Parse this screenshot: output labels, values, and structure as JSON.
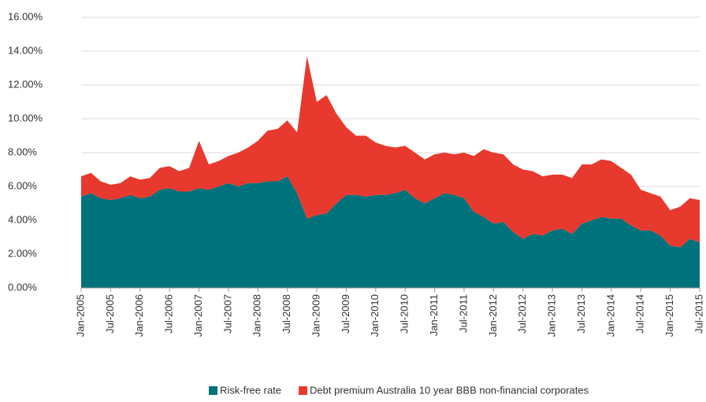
{
  "chart_data": {
    "type": "stacked_area",
    "categories": [
      "Jan-2005",
      null,
      null,
      "Jul-2005",
      null,
      null,
      "Jan-2006",
      null,
      null,
      "Jul-2006",
      null,
      null,
      "Jan-2007",
      null,
      null,
      "Jul-2007",
      null,
      null,
      "Jan-2008",
      null,
      null,
      "Jul-2008",
      null,
      null,
      "Jan-2009",
      null,
      null,
      "Jul-2009",
      null,
      null,
      "Jan-2010",
      null,
      null,
      "Jul-2010",
      null,
      null,
      "Jan-2011",
      null,
      null,
      "Jul-2011",
      null,
      null,
      "Jan-2012",
      null,
      null,
      "Jul-2012",
      null,
      null,
      "Jan-2013",
      null,
      null,
      "Jul-2013",
      null,
      null,
      "Jan-2014",
      null,
      null,
      "Jul-2014",
      null,
      null,
      "Jan-2015",
      null,
      null,
      "Jul-2015"
    ],
    "series": [
      {
        "name": "Risk-free rate",
        "color": "#00727b",
        "values": [
          5.4,
          5.6,
          5.3,
          5.2,
          5.3,
          5.5,
          5.3,
          5.4,
          5.8,
          5.9,
          5.7,
          5.7,
          5.9,
          5.8,
          6.0,
          6.2,
          6.0,
          6.2,
          6.2,
          6.3,
          6.3,
          6.6,
          5.6,
          4.1,
          4.3,
          4.4,
          5.0,
          5.5,
          5.5,
          5.4,
          5.5,
          5.5,
          5.6,
          5.8,
          5.3,
          5.0,
          5.3,
          5.6,
          5.5,
          5.3,
          4.5,
          4.2,
          3.8,
          3.9,
          3.3,
          2.9,
          3.2,
          3.1,
          3.4,
          3.5,
          3.2,
          3.8,
          4.0,
          4.2,
          4.1,
          4.1,
          3.7,
          3.4,
          3.4,
          3.1,
          2.5,
          2.4,
          2.9,
          2.7
        ]
      },
      {
        "name": "Debt premium Australia 10 year BBB non-financial corporates",
        "color": "#e8392f",
        "values": [
          1.2,
          1.2,
          1.0,
          0.9,
          0.9,
          1.1,
          1.1,
          1.1,
          1.3,
          1.3,
          1.2,
          1.4,
          2.8,
          1.5,
          1.5,
          1.6,
          2.0,
          2.1,
          2.5,
          3.0,
          3.1,
          3.3,
          3.6,
          9.6,
          6.7,
          7.0,
          5.3,
          4.0,
          3.5,
          3.6,
          3.1,
          2.9,
          2.7,
          2.6,
          2.7,
          2.6,
          2.6,
          2.4,
          2.4,
          2.7,
          3.3,
          4.0,
          4.2,
          4.0,
          4.0,
          4.1,
          3.7,
          3.5,
          3.3,
          3.2,
          3.3,
          3.5,
          3.3,
          3.4,
          3.4,
          3.0,
          3.0,
          2.4,
          2.2,
          2.3,
          2.1,
          2.4,
          2.4,
          2.5
        ]
      }
    ],
    "ylim": [
      0,
      16
    ],
    "yticks": [
      {
        "value": 0,
        "label": "0.00%"
      },
      {
        "value": 2,
        "label": "2.00%"
      },
      {
        "value": 4,
        "label": "4.00%"
      },
      {
        "value": 6,
        "label": "6.00%"
      },
      {
        "value": 8,
        "label": "8.00%"
      },
      {
        "value": 10,
        "label": "10.00%"
      },
      {
        "value": 12,
        "label": "12.00%"
      },
      {
        "value": 14,
        "label": "14.00%"
      },
      {
        "value": 16,
        "label": "16.00%"
      }
    ],
    "grid": true,
    "legend": "bottom"
  }
}
